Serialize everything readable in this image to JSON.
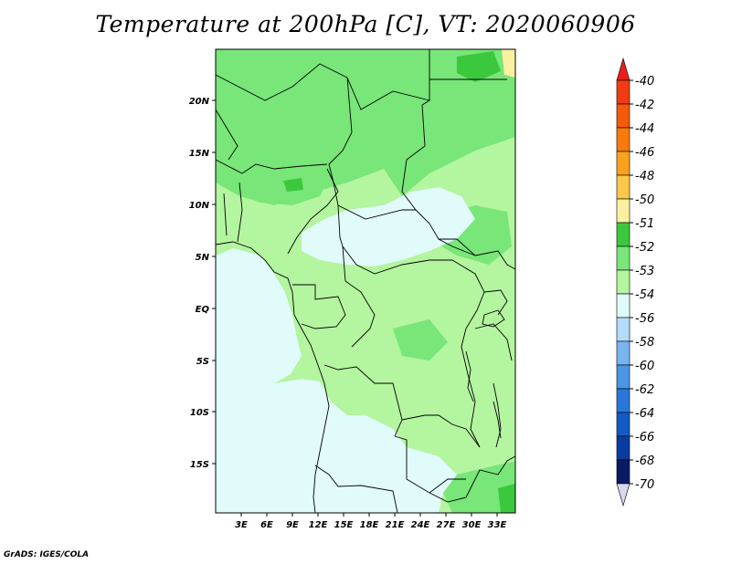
{
  "title": "Temperature at 200hPa [C], VT: 2020060906",
  "credit": "GrADS: IGES/COLA",
  "map": {
    "lat_labels": [
      "20N",
      "15N",
      "10N",
      "5N",
      "EQ",
      "5S",
      "10S",
      "15S"
    ],
    "lon_labels": [
      "3E",
      "6E",
      "9E",
      "12E",
      "15E",
      "18E",
      "21E",
      "24E",
      "27E",
      "30E",
      "33E"
    ]
  },
  "colorbar": {
    "labels": [
      "-40",
      "-42",
      "-44",
      "-46",
      "-48",
      "-50",
      "-51",
      "-52",
      "-53",
      "-54",
      "-56",
      "-58",
      "-60",
      "-62",
      "-64",
      "-66",
      "-68",
      "-70"
    ],
    "colors": [
      "#e81e1e",
      "#f03c10",
      "#f55a0a",
      "#f87a0a",
      "#faa21e",
      "#fcc84a",
      "#faf0a0",
      "#3cc83c",
      "#78e678",
      "#b4f5a0",
      "#e1fafa",
      "#b4dcfa",
      "#78b4f0",
      "#4b96e6",
      "#2878dc",
      "#1459c8",
      "#0a3ca0",
      "#0a1a64",
      "#d8d8f0"
    ]
  },
  "legend_colors": {
    "c51": "#faf0a0",
    "c52": "#3cc83c",
    "c53": "#78e678",
    "c54": "#b4f5a0",
    "c56": "#e1fafa"
  }
}
